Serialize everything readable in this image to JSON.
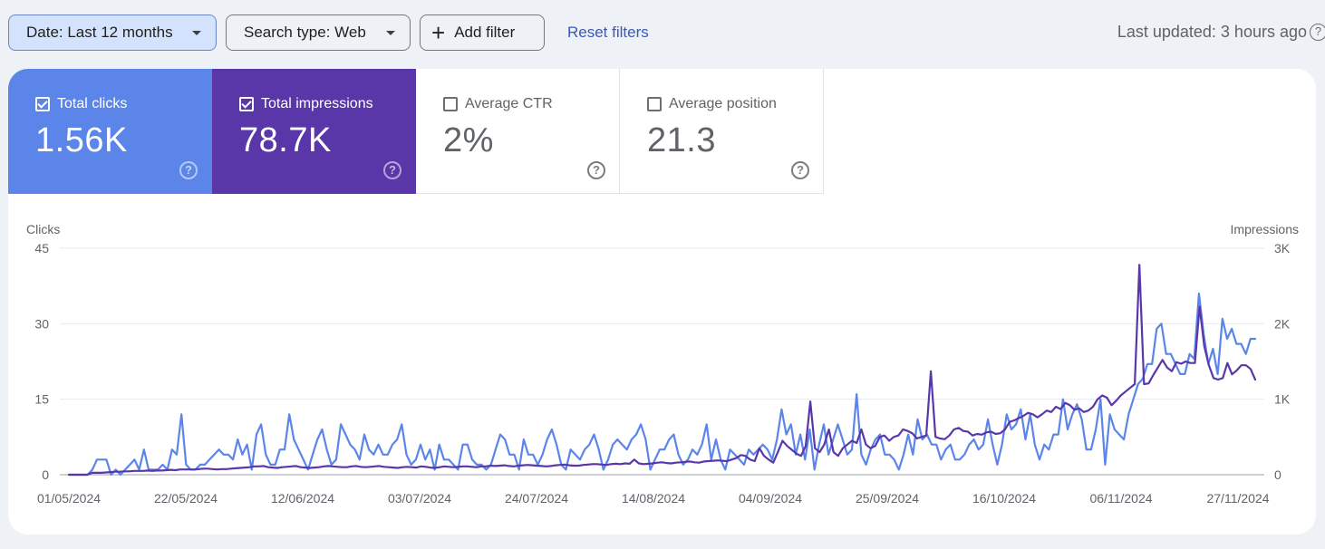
{
  "filters": {
    "date_label": "Date: Last 12 months",
    "search_type_label": "Search type: Web",
    "add_filter_label": "Add filter",
    "reset_label": "Reset filters",
    "last_updated": "Last updated: 3 hours ago"
  },
  "metrics": [
    {
      "label": "Total clicks",
      "value": "1.56K",
      "checked": true,
      "color": "#5b85e8"
    },
    {
      "label": "Total impressions",
      "value": "78.7K",
      "checked": true,
      "color": "#5937a8"
    },
    {
      "label": "Average CTR",
      "value": "2%",
      "checked": false
    },
    {
      "label": "Average position",
      "value": "21.3",
      "checked": false
    }
  ],
  "chart_data": {
    "type": "line",
    "x_start": "01/05/2024",
    "x_end": "01/12/2024",
    "xticks": [
      "01/05/2024",
      "22/05/2024",
      "12/06/2024",
      "03/07/2024",
      "24/07/2024",
      "14/08/2024",
      "04/09/2024",
      "25/09/2024",
      "16/10/2024",
      "06/11/2024",
      "27/11/2024"
    ],
    "left_axis": {
      "label": "Clicks",
      "ylim": [
        0,
        45
      ],
      "ticks": [
        "0",
        "15",
        "30",
        "45"
      ]
    },
    "right_axis": {
      "label": "Impressions",
      "ylim": [
        0,
        3000
      ],
      "ticks": [
        "0",
        "1K",
        "2K",
        "3K"
      ]
    },
    "grid": true,
    "series": [
      {
        "name": "Clicks",
        "axis": "left",
        "color": "#5b85e8",
        "values": [
          0,
          0,
          0,
          0,
          0,
          1,
          3,
          3,
          3,
          0,
          1,
          0,
          1,
          2,
          3,
          1,
          5,
          1,
          1,
          1,
          2,
          1,
          5,
          4,
          12,
          2,
          1,
          1,
          2,
          2,
          3,
          4,
          5,
          4,
          4,
          3,
          7,
          4,
          6,
          1,
          8,
          10,
          4,
          2,
          2,
          5,
          5,
          12,
          7,
          5,
          3,
          1,
          4,
          7,
          9,
          5,
          2,
          3,
          10,
          8,
          6,
          5,
          3,
          8,
          5,
          4,
          6,
          4,
          4,
          6,
          7,
          10,
          4,
          2,
          3,
          6,
          3,
          5,
          1,
          6,
          3,
          3,
          2,
          1,
          6,
          6,
          3,
          2,
          2,
          1,
          2,
          5,
          8,
          7,
          4,
          4,
          1,
          7,
          4,
          4,
          2,
          4,
          7,
          9,
          6,
          2,
          1,
          5,
          4,
          3,
          5,
          6,
          8,
          5,
          1,
          3,
          6,
          7,
          6,
          5,
          7,
          8,
          10,
          7,
          1,
          3,
          5,
          5,
          7,
          8,
          4,
          2,
          3,
          5,
          4,
          6,
          10,
          3,
          7,
          3,
          1,
          5,
          4,
          3,
          2,
          5,
          4,
          5,
          6,
          5,
          3,
          7,
          13,
          8,
          10,
          4,
          8,
          3,
          9,
          1,
          6,
          10,
          4,
          7,
          10,
          7,
          4,
          5,
          16,
          4,
          2,
          5,
          7,
          8,
          4,
          4,
          3,
          1,
          4,
          8,
          4,
          11,
          7,
          8,
          6,
          6,
          3,
          5,
          6,
          3,
          3,
          4,
          6,
          7,
          5,
          6,
          11,
          6,
          2,
          6,
          12,
          9,
          10,
          13,
          7,
          12,
          6,
          3,
          6,
          5,
          8,
          8,
          15,
          9,
          12,
          14,
          11,
          5,
          5,
          9,
          15,
          2,
          12,
          9,
          8,
          7,
          12,
          15,
          18,
          19,
          22,
          22,
          29,
          30,
          24,
          24,
          22,
          20,
          20,
          24,
          23,
          36,
          28,
          22,
          25,
          20,
          31,
          27,
          29,
          26,
          26,
          24,
          27,
          27
        ],
        "note": "approximate daily values read from the chart"
      },
      {
        "name": "Impressions",
        "axis": "right",
        "color": "#5937a8",
        "values": [
          0,
          0,
          0,
          0,
          0,
          25,
          25,
          25,
          30,
          35,
          40,
          40,
          45,
          45,
          50,
          50,
          50,
          55,
          50,
          55,
          55,
          60,
          65,
          60,
          70,
          70,
          70,
          70,
          75,
          80,
          80,
          75,
          70,
          75,
          75,
          80,
          85,
          90,
          95,
          100,
          110,
          110,
          115,
          100,
          95,
          90,
          100,
          105,
          110,
          115,
          100,
          95,
          90,
          95,
          100,
          110,
          115,
          110,
          105,
          100,
          100,
          110,
          115,
          105,
          100,
          105,
          110,
          115,
          105,
          100,
          95,
          90,
          100,
          105,
          100,
          95,
          110,
          105,
          95,
          90,
          100,
          110,
          105,
          100,
          105,
          110,
          110,
          105,
          100,
          110,
          110,
          120,
          115,
          120,
          125,
          115,
          110,
          120,
          125,
          130,
          125,
          120,
          115,
          110,
          115,
          125,
          130,
          135,
          125,
          120,
          120,
          130,
          135,
          140,
          140,
          135,
          130,
          140,
          145,
          140,
          150,
          145,
          200,
          150,
          140,
          145,
          150,
          160,
          165,
          155,
          150,
          160,
          165,
          170,
          175,
          165,
          160,
          175,
          180,
          185,
          190,
          185,
          180,
          200,
          220,
          260,
          250,
          200,
          180,
          350,
          250,
          200,
          160,
          300,
          450,
          380,
          330,
          280,
          250,
          380,
          970,
          350,
          300,
          400,
          600,
          300,
          250,
          350,
          400,
          450,
          420,
          600,
          400,
          350,
          380,
          500,
          520,
          450,
          500,
          520,
          600,
          580,
          550,
          480,
          500,
          520,
          1370,
          500,
          480,
          470,
          520,
          600,
          620,
          580,
          570,
          520,
          540,
          530,
          560,
          570,
          540,
          550,
          600,
          700,
          720,
          750,
          780,
          820,
          800,
          760,
          800,
          850,
          830,
          900,
          870,
          950,
          920,
          860,
          880,
          830,
          850,
          900,
          1000,
          1050,
          1020,
          920,
          980,
          1050,
          1100,
          1150,
          1200,
          2780,
          1200,
          1210,
          1320,
          1420,
          1520,
          1420,
          1370,
          1490,
          1470,
          1500,
          1480,
          1480,
          2230,
          1700,
          1450,
          1280,
          1260,
          1280,
          1480,
          1330,
          1380,
          1450,
          1450,
          1400,
          1260
        ]
      }
    ]
  }
}
